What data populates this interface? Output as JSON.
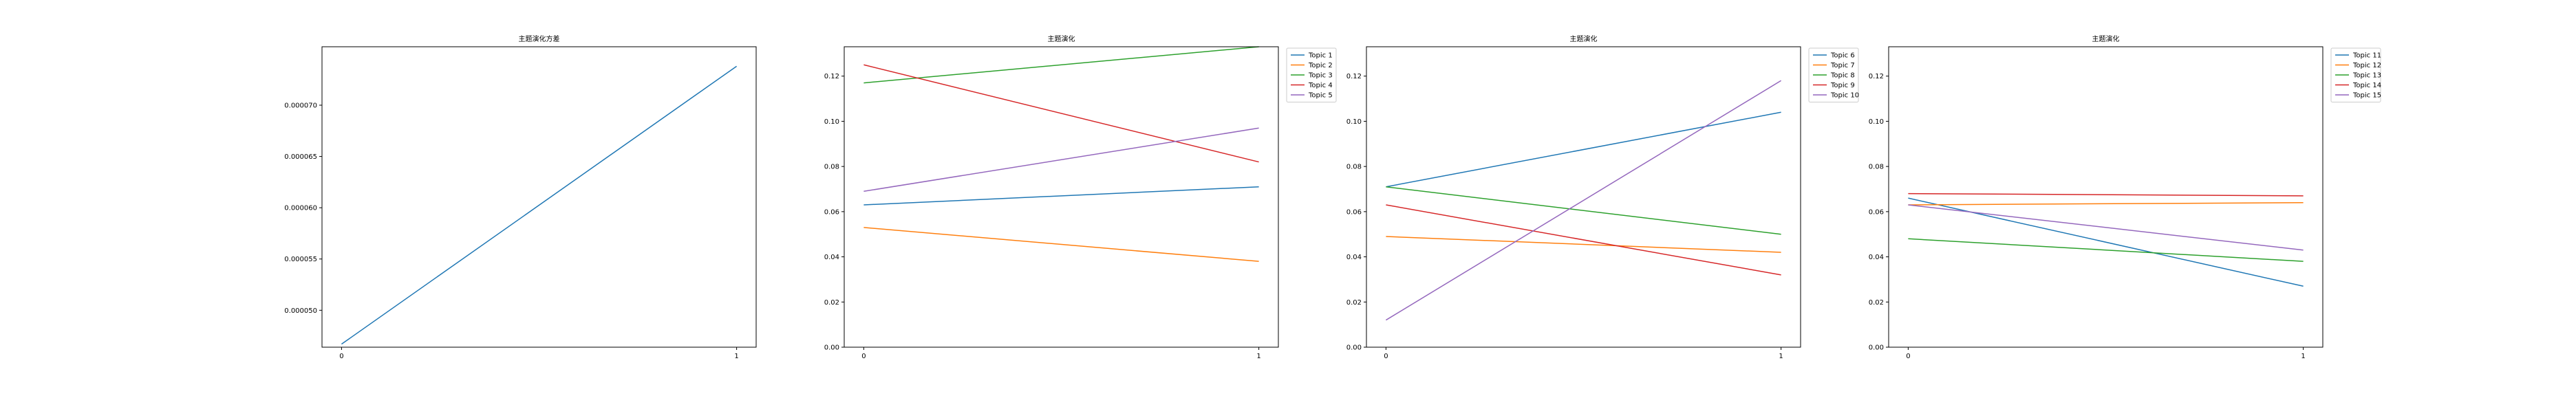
{
  "chart_data": [
    {
      "type": "line",
      "title": "主题演化方差",
      "x": [
        0,
        1
      ],
      "xticks": [
        "0",
        "1"
      ],
      "ylim": [
        4.64e-05,
        7.57e-05
      ],
      "yticks": [
        "0.000050",
        "0.000055",
        "0.000060",
        "0.000065",
        "0.000070"
      ],
      "yticks_values": [
        5e-05,
        5.5e-05,
        6e-05,
        6.5e-05,
        7e-05
      ],
      "series": [
        {
          "values": [
            4.67e-05,
            7.38e-05
          ],
          "color": "#1f77b4"
        }
      ],
      "legend": "none"
    },
    {
      "type": "line",
      "title": "主题演化",
      "x": [
        0,
        1
      ],
      "xticks": [
        "0",
        "1"
      ],
      "ylim": [
        0,
        0.133
      ],
      "yticks": [
        "0.00",
        "0.02",
        "0.04",
        "0.06",
        "0.08",
        "0.10",
        "0.12"
      ],
      "yticks_values": [
        0,
        0.02,
        0.04,
        0.06,
        0.08,
        0.1,
        0.12
      ],
      "legend": "top-right outside",
      "series": [
        {
          "name": "Topic 1",
          "values": [
            0.063,
            0.071
          ],
          "color": "#1f77b4"
        },
        {
          "name": "Topic 2",
          "values": [
            0.053,
            0.038
          ],
          "color": "#ff7f0e"
        },
        {
          "name": "Topic 3",
          "values": [
            0.117,
            0.133
          ],
          "color": "#2ca02c"
        },
        {
          "name": "Topic 4",
          "values": [
            0.125,
            0.082
          ],
          "color": "#d62728"
        },
        {
          "name": "Topic 5",
          "values": [
            0.069,
            0.097
          ],
          "color": "#9467bd"
        }
      ]
    },
    {
      "type": "line",
      "title": "主题演化",
      "x": [
        0,
        1
      ],
      "xticks": [
        "0",
        "1"
      ],
      "ylim": [
        0,
        0.133
      ],
      "yticks": [
        "0.00",
        "0.02",
        "0.04",
        "0.06",
        "0.08",
        "0.10",
        "0.12"
      ],
      "yticks_values": [
        0,
        0.02,
        0.04,
        0.06,
        0.08,
        0.1,
        0.12
      ],
      "legend": "top-right outside",
      "series": [
        {
          "name": "Topic 6",
          "values": [
            0.071,
            0.104
          ],
          "color": "#1f77b4"
        },
        {
          "name": "Topic 7",
          "values": [
            0.049,
            0.042
          ],
          "color": "#ff7f0e"
        },
        {
          "name": "Topic 8",
          "values": [
            0.071,
            0.05
          ],
          "color": "#2ca02c"
        },
        {
          "name": "Topic 9",
          "values": [
            0.063,
            0.032
          ],
          "color": "#d62728"
        },
        {
          "name": "Topic 10",
          "values": [
            0.012,
            0.118
          ],
          "color": "#9467bd"
        }
      ]
    },
    {
      "type": "line",
      "title": "主题演化",
      "x": [
        0,
        1
      ],
      "xticks": [
        "0",
        "1"
      ],
      "ylim": [
        0,
        0.133
      ],
      "yticks": [
        "0.00",
        "0.02",
        "0.04",
        "0.06",
        "0.08",
        "0.10",
        "0.12"
      ],
      "yticks_values": [
        0,
        0.02,
        0.04,
        0.06,
        0.08,
        0.1,
        0.12
      ],
      "legend": "top-right outside",
      "series": [
        {
          "name": "Topic 11",
          "values": [
            0.066,
            0.027
          ],
          "color": "#1f77b4"
        },
        {
          "name": "Topic 12",
          "values": [
            0.063,
            0.064
          ],
          "color": "#ff7f0e"
        },
        {
          "name": "Topic 13",
          "values": [
            0.048,
            0.038
          ],
          "color": "#2ca02c"
        },
        {
          "name": "Topic 14",
          "values": [
            0.068,
            0.067
          ],
          "color": "#d62728"
        },
        {
          "name": "Topic 15",
          "values": [
            0.063,
            0.043
          ],
          "color": "#9467bd"
        }
      ]
    }
  ]
}
